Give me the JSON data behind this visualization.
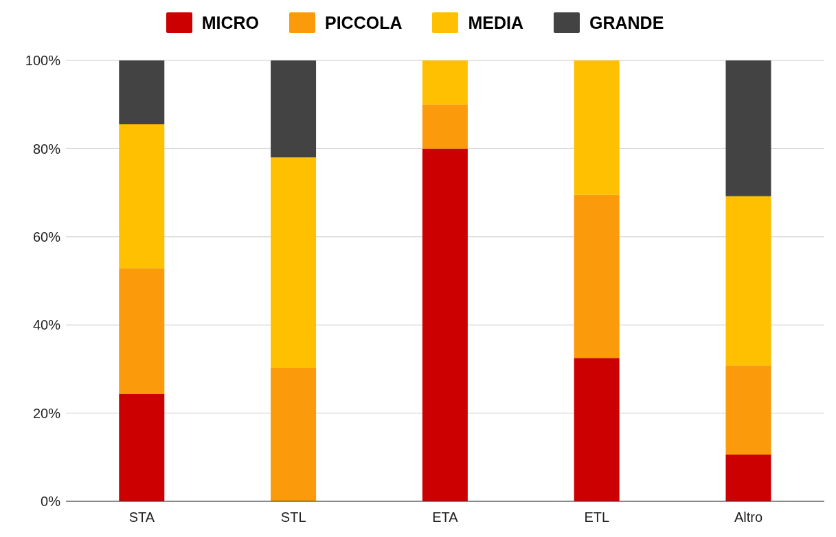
{
  "chart_data": {
    "type": "bar",
    "stacked": true,
    "categories": [
      "STA",
      "STL",
      "ETA",
      "ETL",
      "Altro"
    ],
    "series": [
      {
        "name": "MICRO",
        "color": "#cc0000",
        "values": [
          24.3,
          0,
          80,
          32.5,
          10.6
        ]
      },
      {
        "name": "PICCOLA",
        "color": "#fb9a0a",
        "values": [
          28.6,
          30.2,
          10,
          37,
          20.2
        ]
      },
      {
        "name": "MEDIA",
        "color": "#fec000",
        "values": [
          32.6,
          47.8,
          10,
          30.5,
          38.4
        ]
      },
      {
        "name": "GRANDE",
        "color": "#434343",
        "values": [
          14.5,
          22,
          0,
          0,
          30.8
        ]
      }
    ],
    "ylim": [
      0,
      100
    ],
    "yticks": [
      {
        "value": 0,
        "label": "0%"
      },
      {
        "value": 20,
        "label": "20%"
      },
      {
        "value": 40,
        "label": "40%"
      },
      {
        "value": 60,
        "label": "60%"
      },
      {
        "value": 80,
        "label": "80%"
      },
      {
        "value": 100,
        "label": "100%"
      }
    ],
    "grid": "y",
    "legend": "top"
  }
}
